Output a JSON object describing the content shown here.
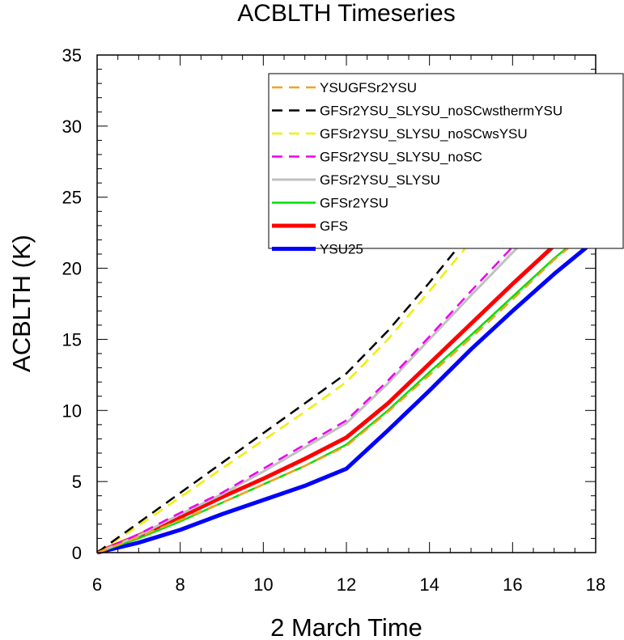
{
  "chart_data": {
    "type": "line",
    "title": "ACBLTH Timeseries",
    "xlabel": "2 March Time",
    "ylabel": "ACBLTH (K)",
    "xlim": [
      6,
      18
    ],
    "ylim": [
      0,
      35
    ],
    "xticks": [
      6,
      8,
      10,
      12,
      14,
      16,
      18
    ],
    "yticks": [
      0,
      5,
      10,
      15,
      20,
      25,
      30,
      35
    ],
    "legend_position": "top-right",
    "grid": false,
    "series": [
      {
        "name": "YSUGFSr2YSU",
        "color": "#f5a21e",
        "dash": "dashed",
        "width": 2.5,
        "x": [
          6,
          7,
          8,
          9,
          10,
          11,
          12,
          13,
          14,
          15,
          16,
          17,
          18
        ],
        "y": [
          0,
          1.1,
          2.3,
          3.5,
          4.8,
          6.1,
          7.5,
          9.9,
          12.5,
          15.1,
          17.8,
          20.6,
          23.0
        ]
      },
      {
        "name": "GFSr2YSU_SLYSU_noSCwsthermYSU",
        "color": "#000000",
        "dash": "dashed",
        "width": 2.5,
        "x": [
          6,
          7,
          8,
          9,
          10,
          11,
          12,
          13,
          14,
          15,
          16,
          17,
          18
        ],
        "y": [
          0,
          2.1,
          4.2,
          6.3,
          8.4,
          10.5,
          12.6,
          15.6,
          19.0,
          22.6,
          26.2,
          29.6,
          32.8
        ]
      },
      {
        "name": "GFSr2YSU_SLYSU_noSCwsYSU",
        "color": "#f0f000",
        "dash": "dashed",
        "width": 2.5,
        "x": [
          6,
          7,
          8,
          9,
          10,
          11,
          12,
          13,
          14,
          15,
          16,
          17,
          18
        ],
        "y": [
          0,
          1.9,
          3.9,
          5.9,
          7.9,
          9.9,
          12.0,
          15.0,
          18.4,
          21.9,
          25.4,
          28.8,
          32.0
        ]
      },
      {
        "name": "GFSr2YSU_SLYSU_noSC",
        "color": "#ee00ee",
        "dash": "dashed",
        "width": 2.5,
        "x": [
          6,
          7,
          8,
          9,
          10,
          11,
          12,
          13,
          14,
          15,
          16,
          17,
          18
        ],
        "y": [
          0,
          1.3,
          2.8,
          4.2,
          5.9,
          7.6,
          9.3,
          12.1,
          15.2,
          18.4,
          21.5,
          24.5,
          27.3
        ]
      },
      {
        "name": "GFSr2YSU_SLYSU",
        "color": "#c0c0c0",
        "dash": "solid",
        "width": 3,
        "x": [
          6,
          7,
          8,
          9,
          10,
          11,
          12,
          13,
          14,
          15,
          16,
          17,
          18
        ],
        "y": [
          0,
          1.2,
          2.7,
          4.1,
          5.7,
          7.4,
          9.1,
          11.9,
          15.0,
          18.1,
          21.1,
          24.1,
          26.7
        ]
      },
      {
        "name": "GFSr2YSU",
        "color": "#00e000",
        "dash": "solid",
        "width": 2.5,
        "x": [
          6,
          7,
          8,
          9,
          10,
          11,
          12,
          13,
          14,
          15,
          16,
          17,
          18
        ],
        "y": [
          0,
          1.0,
          2.2,
          3.5,
          4.8,
          6.1,
          7.6,
          10.0,
          12.7,
          15.3,
          18.0,
          20.7,
          23.1
        ]
      },
      {
        "name": "GFS",
        "color": "#ff0000",
        "dash": "solid",
        "width": 5,
        "x": [
          6,
          7,
          8,
          9,
          10,
          11,
          12,
          13,
          14,
          15,
          16,
          17,
          18
        ],
        "y": [
          0,
          1.2,
          2.5,
          3.9,
          5.2,
          6.6,
          8.1,
          10.5,
          13.3,
          16.1,
          18.9,
          21.6,
          23.9
        ]
      },
      {
        "name": "YSU25",
        "color": "#0000ff",
        "dash": "solid",
        "width": 5,
        "x": [
          6,
          7,
          8,
          9,
          10,
          11,
          12,
          13,
          14,
          15,
          16,
          17,
          18
        ],
        "y": [
          0,
          0.7,
          1.6,
          2.7,
          3.7,
          4.7,
          5.9,
          8.6,
          11.4,
          14.3,
          17.0,
          19.6,
          22.0
        ]
      }
    ]
  }
}
